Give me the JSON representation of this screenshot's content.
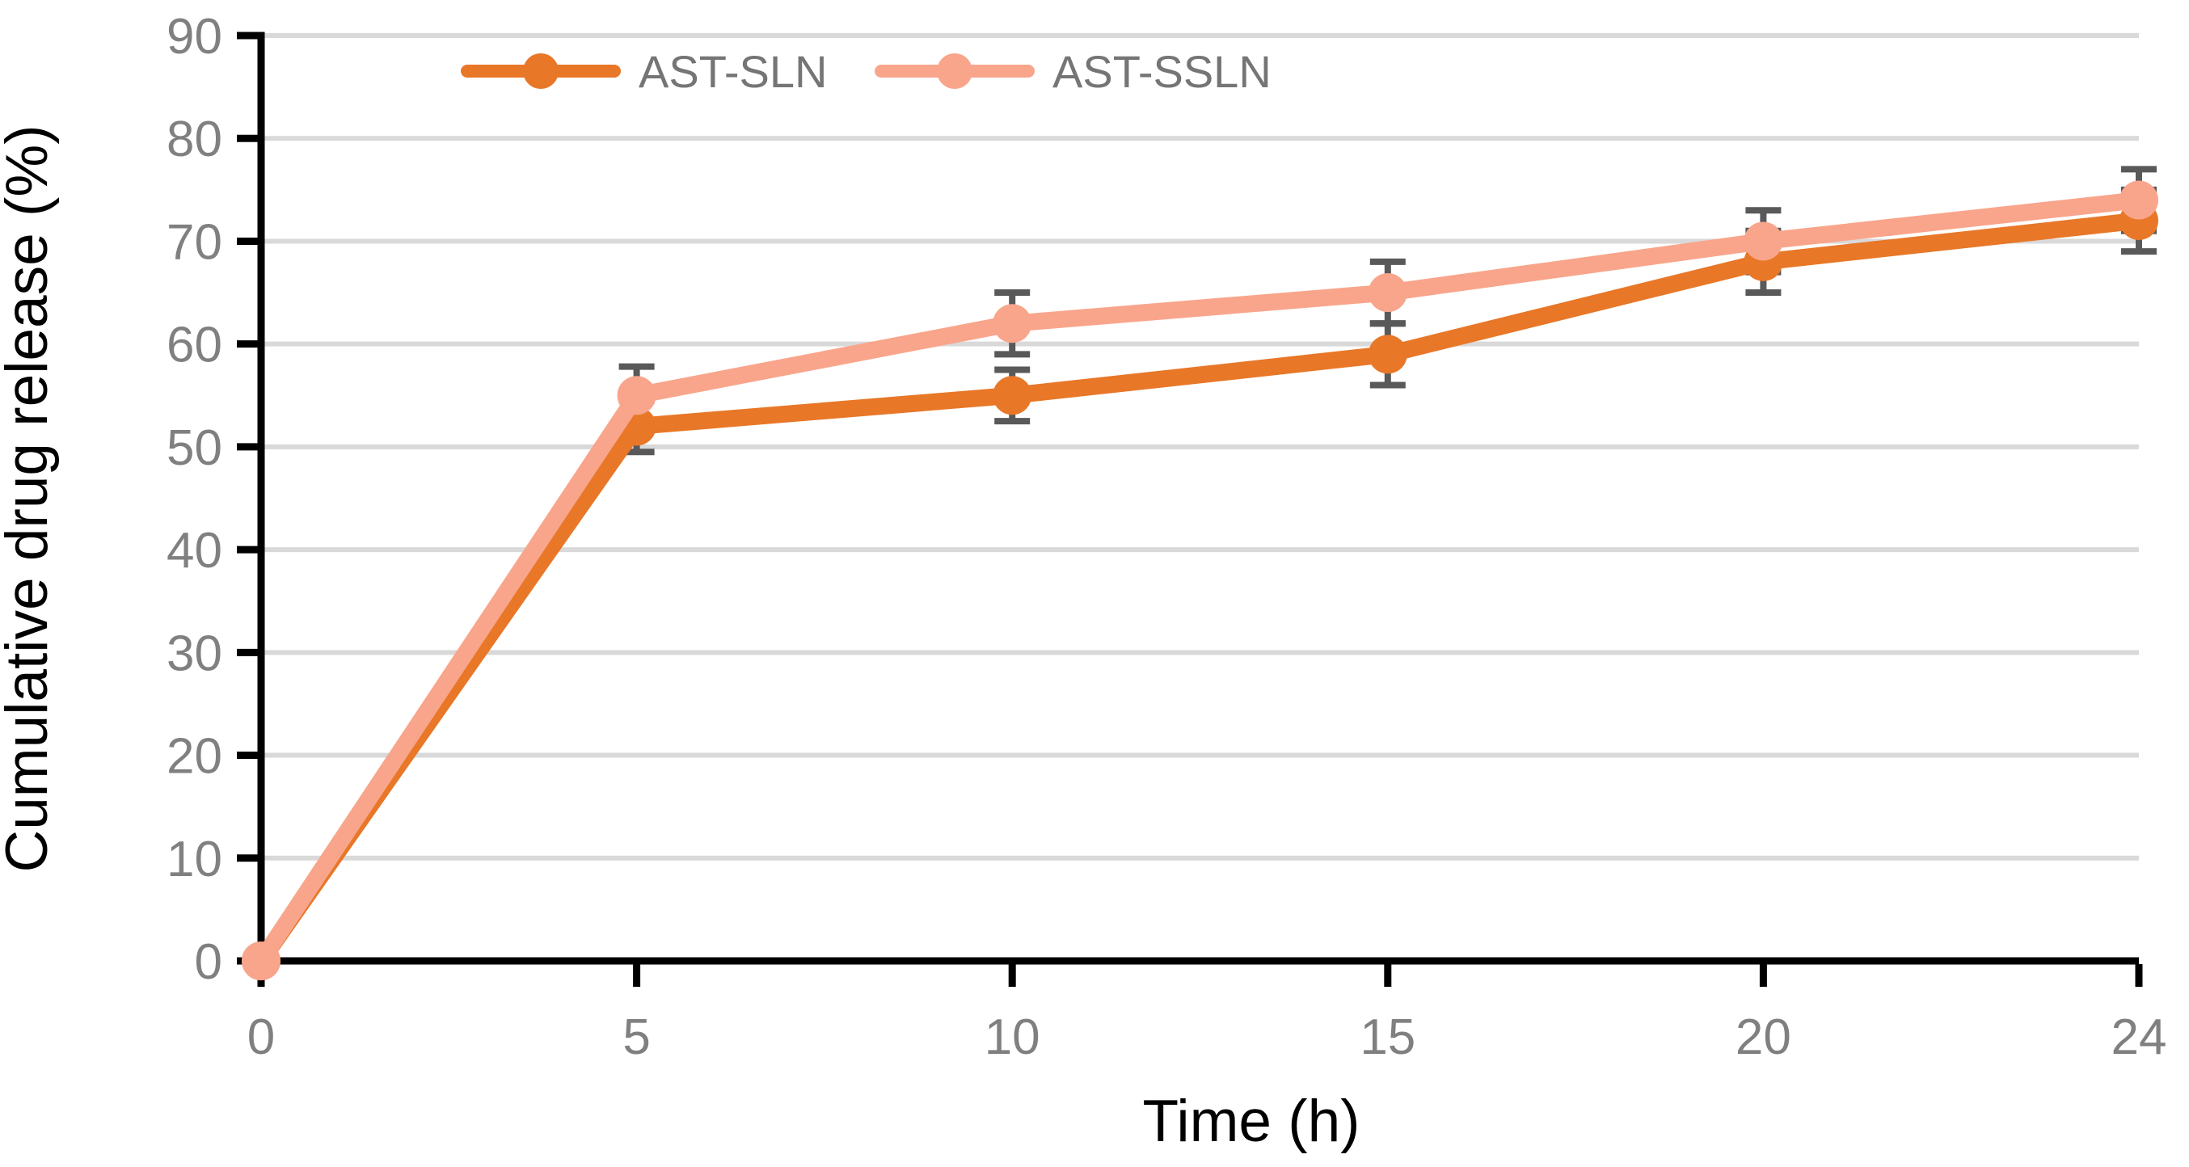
{
  "chart_data": {
    "type": "line",
    "title": "",
    "xlabel": "Time (h)",
    "ylabel": "Cumulative drug release (%)",
    "x_categories": [
      "0",
      "5",
      "10",
      "15",
      "20",
      "24"
    ],
    "x_axis_layout": "equally-spaced-categories",
    "ylim": [
      0,
      90
    ],
    "ytick_step": 10,
    "grid": "horizontal",
    "legend_position": "top-inside-horizontal",
    "series": [
      {
        "name": "AST-SLN",
        "color": "#E87728",
        "values": [
          0,
          52,
          55,
          59,
          68,
          72
        ],
        "errors": [
          0,
          2.5,
          2.5,
          3,
          3,
          3
        ]
      },
      {
        "name": "AST-SSLN",
        "color": "#F9A58B",
        "values": [
          0,
          55,
          62,
          65,
          70,
          74
        ],
        "errors": [
          0,
          2.8,
          3,
          3,
          3,
          3
        ]
      }
    ],
    "colors": {
      "error_bar": "#595959",
      "gridline": "#D9D9D9",
      "axis_line": "#000000",
      "tick_label": "#808080",
      "legend_text": "#757575",
      "background": "#FFFFFF"
    }
  }
}
